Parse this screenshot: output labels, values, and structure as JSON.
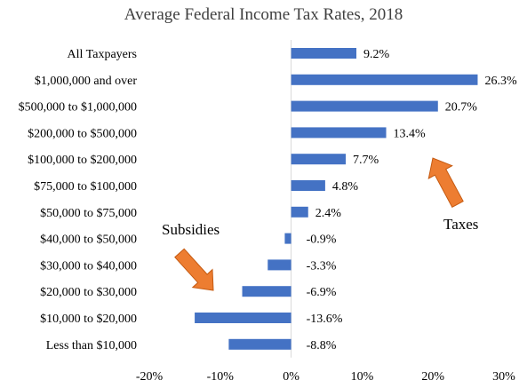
{
  "chart_data": {
    "type": "bar",
    "orientation": "horizontal",
    "title": "Average Federal Income Tax Rates, 2018",
    "xlabel": "",
    "ylabel": "",
    "categories": [
      "All Taxpayers",
      "$1,000,000 and over",
      "$500,000 to $1,000,000",
      "$200,000 to $500,000",
      "$100,000 to $200,000",
      "$75,000 to $100,000",
      "$50,000 to $75,000",
      "$40,000 to $50,000",
      "$30,000 to $40,000",
      "$20,000 to $30,000",
      "$10,000 to $20,000",
      "Less than $10,000"
    ],
    "values": [
      9.2,
      26.3,
      20.7,
      13.4,
      7.7,
      4.8,
      2.4,
      -0.9,
      -3.3,
      -6.9,
      -13.6,
      -8.8
    ],
    "data_labels": [
      "9.2%",
      "26.3%",
      "20.7%",
      "13.4%",
      "7.7%",
      "4.8%",
      "2.4%",
      "-0.9%",
      "-3.3%",
      "-6.9%",
      "-13.6%",
      "-8.8%"
    ],
    "xlim": [
      -20,
      30
    ],
    "xticks": [
      -20,
      -10,
      0,
      10,
      20,
      30
    ],
    "xtick_labels": [
      "-20%",
      "-10%",
      "0%",
      "10%",
      "20%",
      "30%"
    ],
    "bar_color": "#4472C4",
    "grid": false,
    "annotations": [
      {
        "text": "Subsidies",
        "arrow_color": "#ED7D31",
        "arrow_direction": "down-right"
      },
      {
        "text": "Taxes",
        "arrow_color": "#ED7D31",
        "arrow_direction": "up-left"
      }
    ]
  }
}
